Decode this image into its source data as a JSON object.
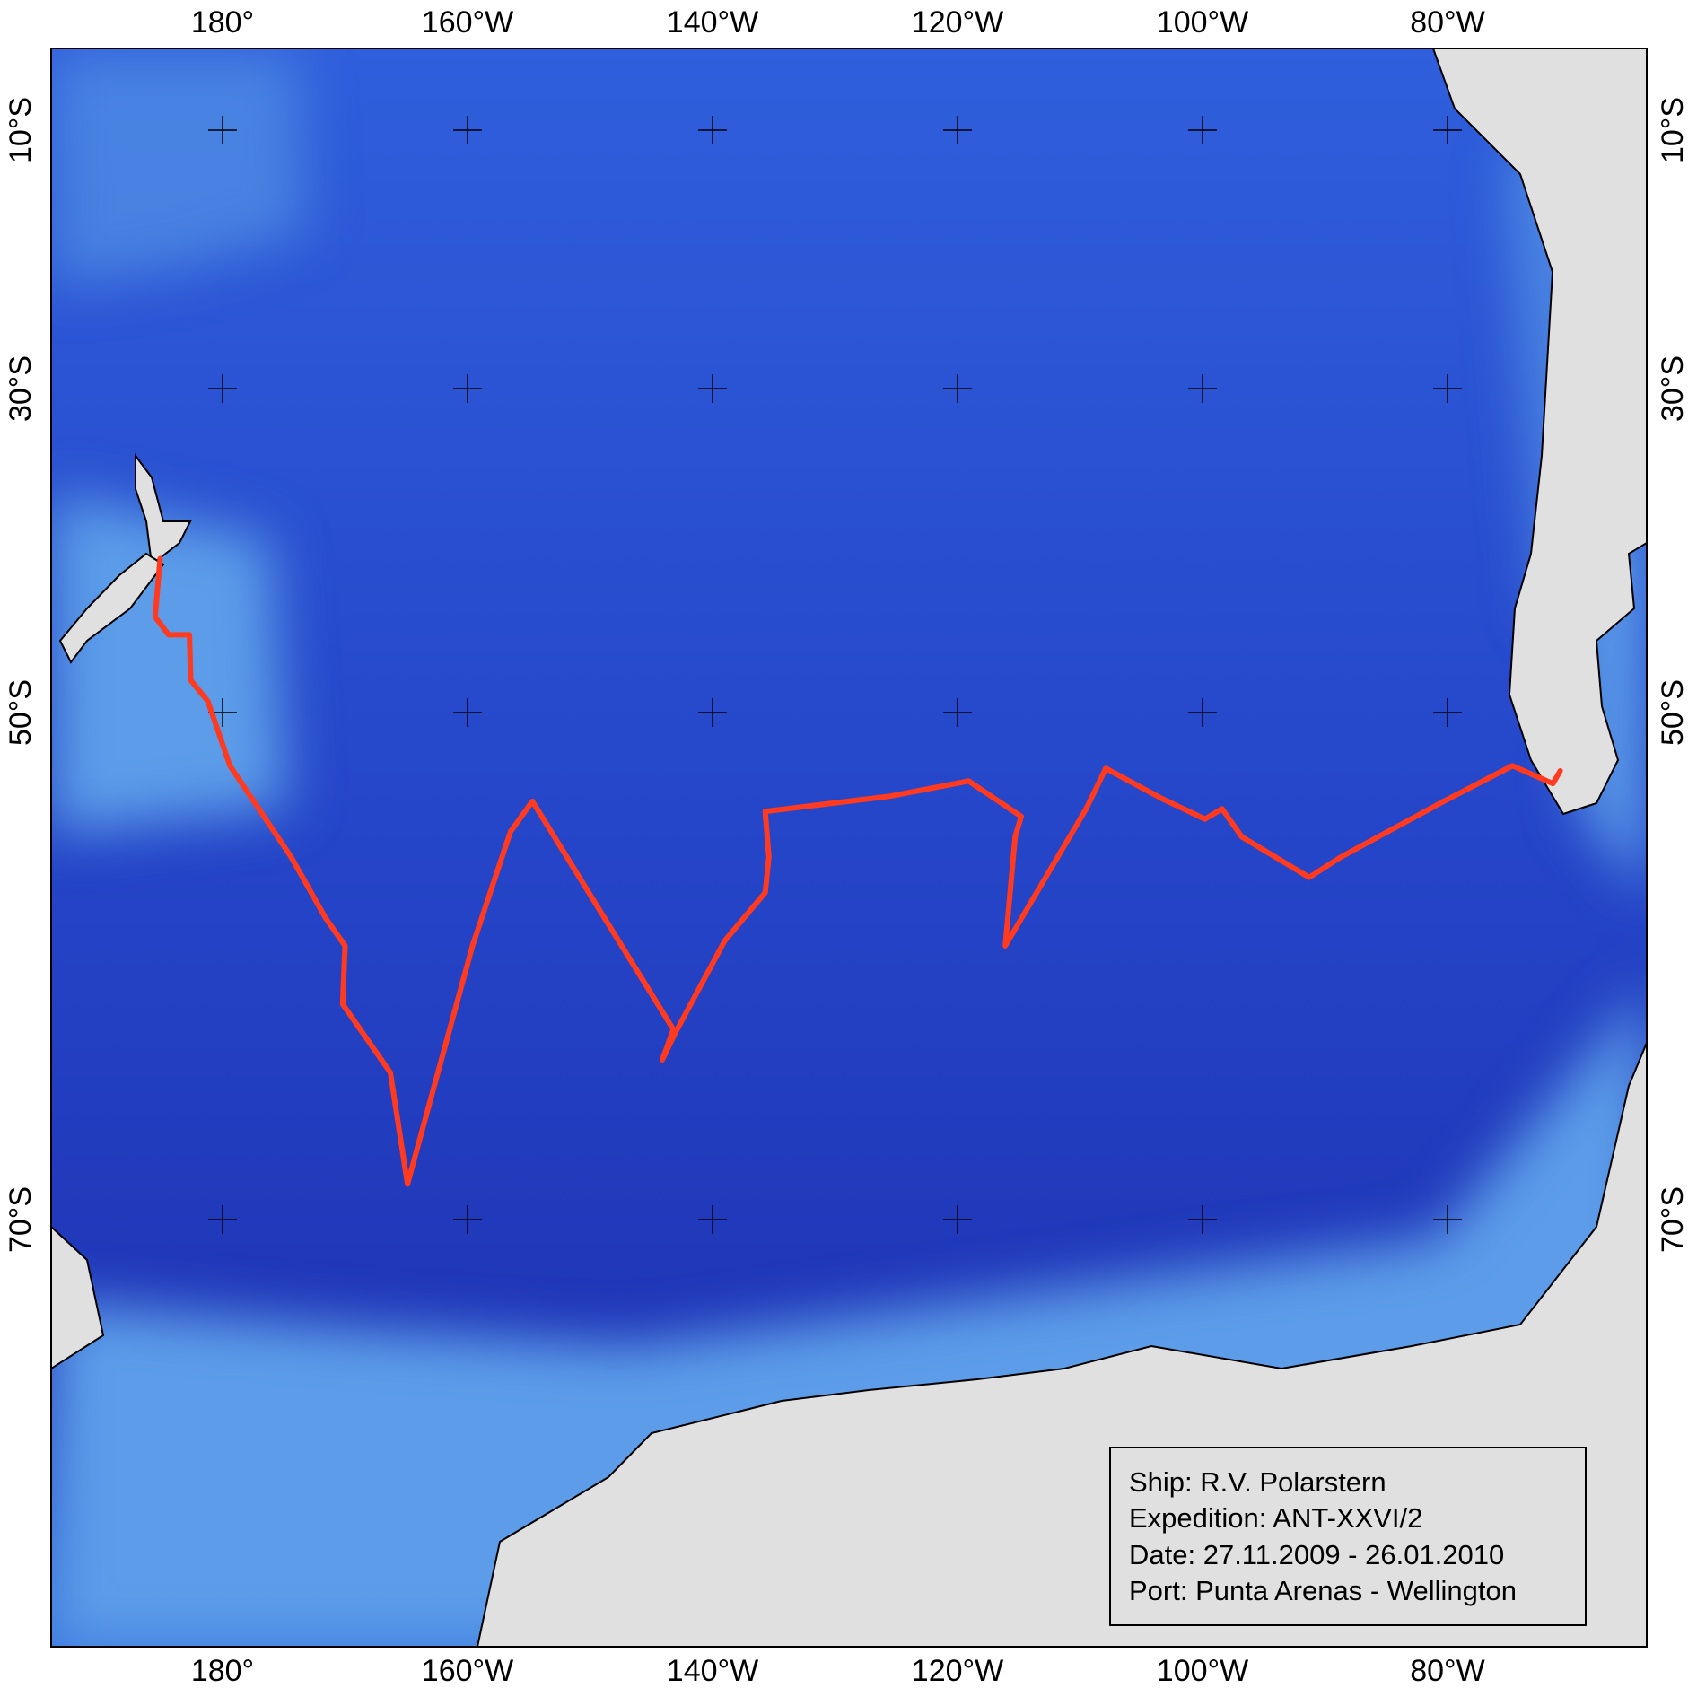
{
  "map": {
    "xticks": [
      {
        "value": -180,
        "label": "180°"
      },
      {
        "value": -160,
        "label": "160°W"
      },
      {
        "value": -140,
        "label": "140°W"
      },
      {
        "value": -120,
        "label": "120°W"
      },
      {
        "value": -100,
        "label": "100°W"
      },
      {
        "value": -80,
        "label": "80°W"
      }
    ],
    "yticks": [
      {
        "value": -10,
        "label": "10°S"
      },
      {
        "value": -30,
        "label": "30°S"
      },
      {
        "value": -50,
        "label": "50°S"
      },
      {
        "value": -70,
        "label": "70°S"
      }
    ],
    "track": {
      "color": "#ff3a1f",
      "lon": [
        -185.1,
        -185.5,
        -184.4,
        -182.7,
        -182.6,
        -181.2,
        -179.4,
        -174.4,
        -171.6,
        -170.0,
        -170.2,
        -166.3,
        -164.9,
        -159.6,
        -156.5,
        -154.7,
        -143.2,
        -144.1,
        -143.0,
        -139.0,
        -135.7,
        -135.4,
        -135.7,
        -125.5,
        -119.1,
        -114.8,
        -115.3,
        -116.1,
        -109.5,
        -107.9,
        -103.3,
        -99.8,
        -98.4,
        -96.8,
        -91.3,
        -88.7,
        -80.3,
        -74.7,
        -71.4,
        -70.8
      ],
      "lat": [
        -40.5,
        -44.1,
        -45.2,
        -45.2,
        -48.0,
        -49.3,
        -52.1,
        -55.7,
        -58.1,
        -59.2,
        -61.5,
        -64.2,
        -68.6,
        -59.2,
        -54.7,
        -53.5,
        -62.5,
        -63.7,
        -62.6,
        -59.0,
        -57.1,
        -55.7,
        -53.9,
        -53.3,
        -52.7,
        -54.1,
        -54.9,
        -59.2,
        -53.8,
        -52.2,
        -53.4,
        -54.2,
        -53.8,
        -54.9,
        -56.5,
        -55.7,
        -53.5,
        -52.1,
        -52.8,
        -52.3
      ]
    },
    "legend": [
      "Ship: R.V. Polarstern",
      "Expedition: ANT-XXVI/2",
      "Date: 27.11.2009 - 26.01.2010",
      "Port: Punta Arenas - Wellington"
    ]
  }
}
